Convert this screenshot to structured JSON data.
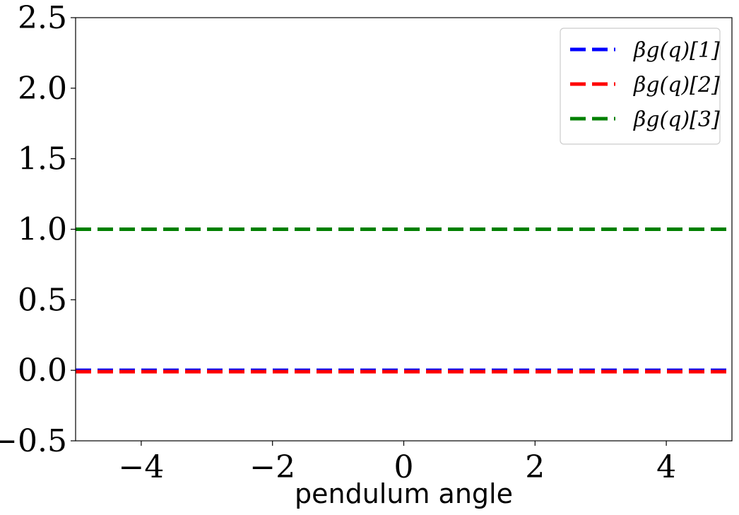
{
  "chart_data": {
    "type": "line",
    "xlabel": "pendulum angle",
    "ylabel": "",
    "xlim": [
      -5,
      5
    ],
    "ylim": [
      -0.5,
      2.5
    ],
    "xticks": [
      -4,
      -2,
      0,
      2,
      4
    ],
    "xtick_labels": [
      "−4",
      "−2",
      "0",
      "2",
      "4"
    ],
    "yticks": [
      -0.5,
      0.0,
      0.5,
      1.0,
      1.5,
      2.0,
      2.5
    ],
    "ytick_labels": [
      "−0.5",
      "0.0",
      "0.5",
      "1.0",
      "1.5",
      "2.0",
      "2.5"
    ],
    "grid": false,
    "legend_position": "top-right",
    "series": [
      {
        "name": "βg(q)[1]",
        "color": "#0000ff",
        "style": "dashed",
        "x": [
          -5,
          5
        ],
        "y": [
          0.0,
          0.0
        ]
      },
      {
        "name": "βg(q)[2]",
        "color": "#ff0000",
        "style": "dashed",
        "x": [
          -5,
          5
        ],
        "y": [
          -0.01,
          -0.01
        ]
      },
      {
        "name": "βg(q)[3]",
        "color": "#008000",
        "style": "dashed",
        "x": [
          -5,
          5
        ],
        "y": [
          1.0,
          1.0
        ]
      }
    ]
  }
}
